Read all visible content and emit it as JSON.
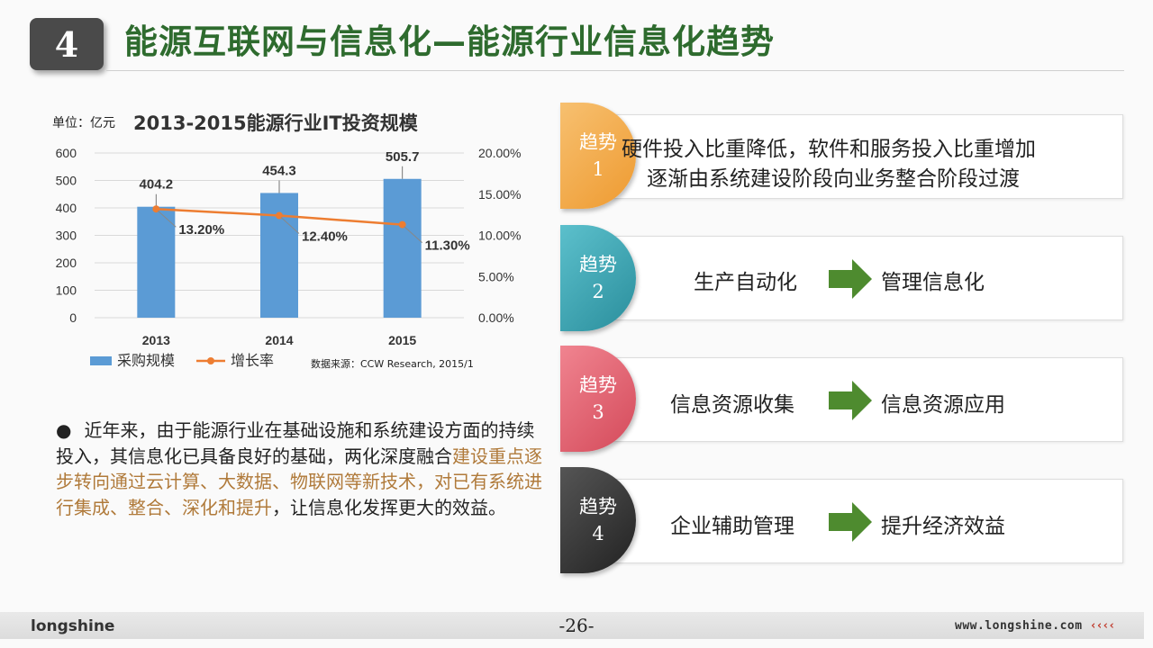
{
  "header": {
    "section_number": "4",
    "title": "能源互联网与信息化—能源行业信息化趋势"
  },
  "chart": {
    "unit_label": "单位：亿元",
    "source": "数据来源：CCW Research, 2015/1"
  },
  "chart_data": {
    "type": "bar",
    "title": "2013-2015能源行业IT投资规模",
    "categories": [
      "2013",
      "2014",
      "2015"
    ],
    "series": [
      {
        "name": "采购规模",
        "type": "bar",
        "axis": "left",
        "values": [
          404.2,
          454.3,
          505.7
        ],
        "labels": [
          "404.2",
          "454.3",
          "505.7"
        ],
        "color": "#5b9bd5"
      },
      {
        "name": "增长率",
        "type": "line",
        "axis": "right",
        "values": [
          13.2,
          12.4,
          11.3
        ],
        "labels": [
          "13.20%",
          "12.40%",
          "11.30%"
        ],
        "color": "#ed7d31"
      }
    ],
    "y_left": {
      "min": 0,
      "max": 600,
      "ticks": [
        "0",
        "100",
        "200",
        "300",
        "400",
        "500",
        "600"
      ]
    },
    "y_right": {
      "min": 0,
      "max": 20,
      "ticks": [
        "0.00%",
        "5.00%",
        "10.00%",
        "15.00%",
        "20.00%"
      ]
    },
    "grid": true,
    "legend_position": "bottom-left"
  },
  "paragraph": {
    "bullet": "●",
    "part1": "近年来，由于能源行业在基础设施和系统建设方面的持续投入，其信息化已具备良好的基础，两化深度融合",
    "highlight": "建设重点逐步转向通过云计算、大数据、物联网等新技术，对已有系统进行集成、整合、深化和提升",
    "part2": "，让信息化发挥更大的效益。"
  },
  "trends": [
    {
      "label": "趋势",
      "num": "1",
      "color": "#f0a440",
      "text_line1": "硬件投入比重降低，软件和服务投入比重增加",
      "text_line2": "逐渐由系统建设阶段向业务整合阶段过渡"
    },
    {
      "label": "趋势",
      "num": "2",
      "color": "#3aa0ad",
      "from": "生产自动化",
      "to": "管理信息化"
    },
    {
      "label": "趋势",
      "num": "3",
      "color": "#e0606e",
      "from": "信息资源收集",
      "to": "信息资源应用"
    },
    {
      "label": "趋势",
      "num": "4",
      "color": "#3a3a3a",
      "from": "企业辅助管理",
      "to": "提升经济效益"
    }
  ],
  "colors": {
    "title_green": "#2e6b2e",
    "arrow_green": "#4e8b2f",
    "highlight": "#b07a3a"
  },
  "footer": {
    "page": "-26-",
    "logo": "longshine",
    "website": "www.longshine.com",
    "arrows": "‹‹‹‹"
  }
}
